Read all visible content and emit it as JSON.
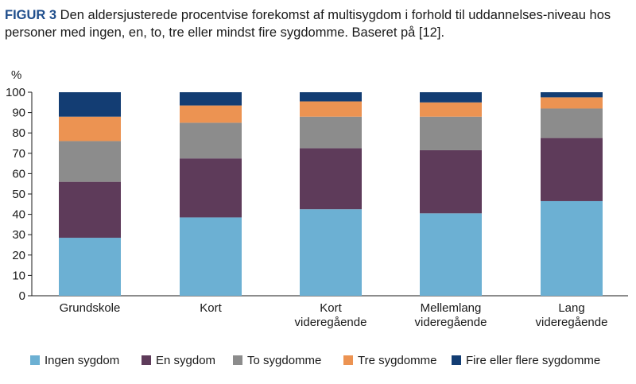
{
  "caption": {
    "figure_label": "FIGUR 3",
    "text": " Den aldersjusterede procentvise forekomst af multisygdom i forhold til uddannelses-niveau hos personer med ingen, en, to, tre eller mindst fire sygdomme. Baseret på [12]."
  },
  "chart_data": {
    "type": "bar",
    "stacked": true,
    "ylabel": "%",
    "ylim": [
      0,
      100
    ],
    "yticks": [
      0,
      10,
      20,
      30,
      40,
      50,
      60,
      70,
      80,
      90,
      100
    ],
    "categories": [
      [
        "Grundskole"
      ],
      [
        "Kort"
      ],
      [
        "Kort",
        "videregående"
      ],
      [
        "Mellemlang",
        "videregående"
      ],
      [
        "Lang",
        "videregående"
      ]
    ],
    "series": [
      {
        "name": "Ingen sygdom",
        "color": "#6cb0d3",
        "values": [
          28.5,
          38.5,
          42.5,
          40.5,
          46.5
        ]
      },
      {
        "name": "En sygdom",
        "color": "#5e3b5a",
        "values": [
          27.5,
          29,
          30,
          31,
          31
        ]
      },
      {
        "name": "To sygdomme",
        "color": "#8c8c8c",
        "values": [
          20,
          17.5,
          15.5,
          16.5,
          14.5
        ]
      },
      {
        "name": "Tre sygdomme",
        "color": "#ec9352",
        "values": [
          12,
          8.5,
          7.5,
          7,
          5.5
        ]
      },
      {
        "name": "Fire eller flere sygdomme",
        "color": "#133d73",
        "values": [
          12,
          6.5,
          4.5,
          5,
          2.5
        ]
      }
    ],
    "grid": false,
    "legend_position": "bottom"
  }
}
